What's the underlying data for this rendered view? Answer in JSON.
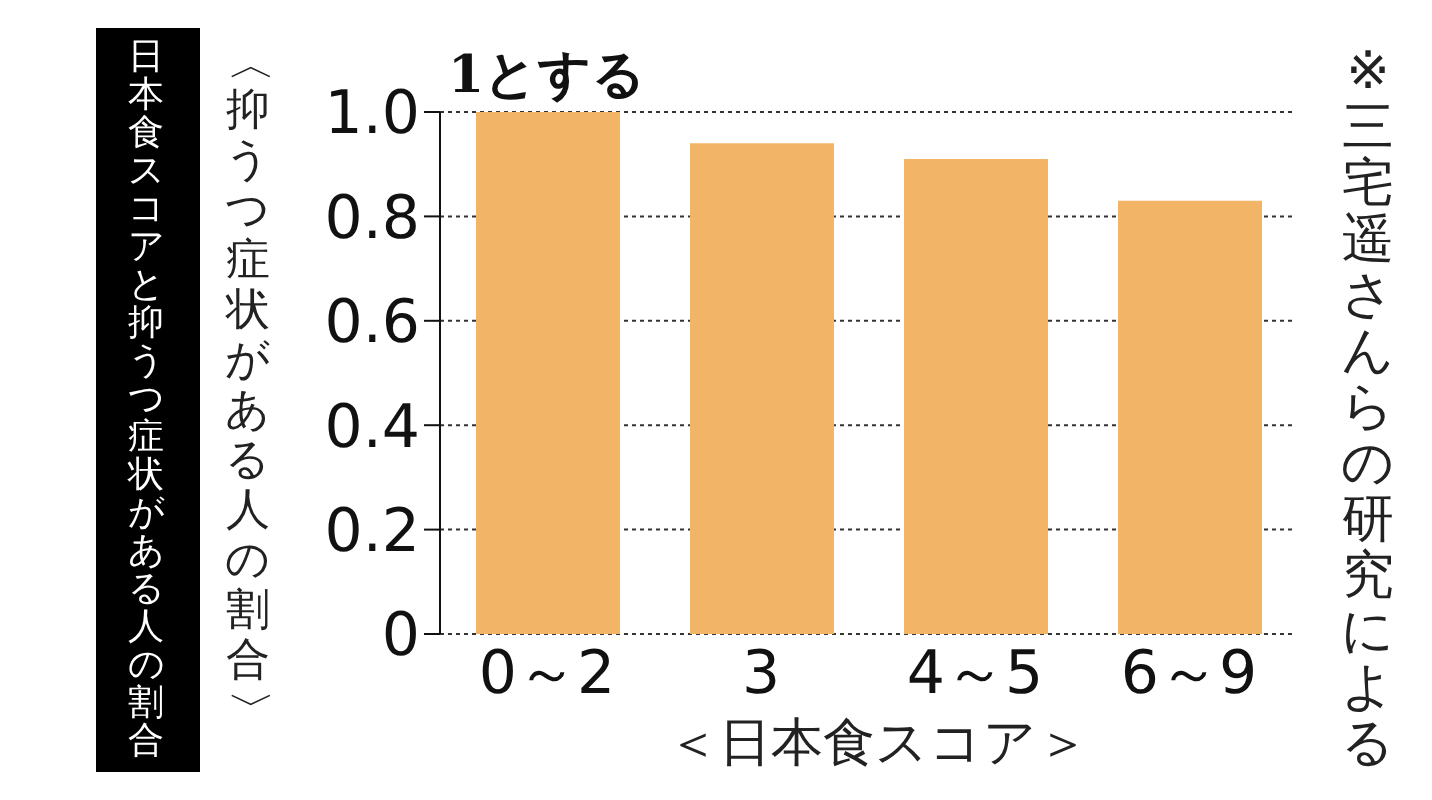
{
  "chart_data": {
    "type": "bar",
    "title": "日本食スコアと抑うつ症状がある人の割合",
    "ylabel": "〈抑うつ症状がある人の割合〉",
    "xlabel": "＜日本食スコア＞",
    "categories": [
      "0～2",
      "3",
      "4～5",
      "6～9"
    ],
    "values": [
      1.0,
      0.94,
      0.91,
      0.83
    ],
    "color": "#f2b466",
    "ylim": [
      0,
      1.0
    ],
    "yticks": [
      0,
      0.2,
      0.4,
      0.6,
      0.8,
      {
        "value": 1.0,
        "label": "1.0"
      }
    ],
    "grid": "y",
    "annotations": [
      {
        "text": "1とする",
        "x": "0～2",
        "y": 1.0
      },
      "※三宅遥さんらの研究による"
    ]
  }
}
